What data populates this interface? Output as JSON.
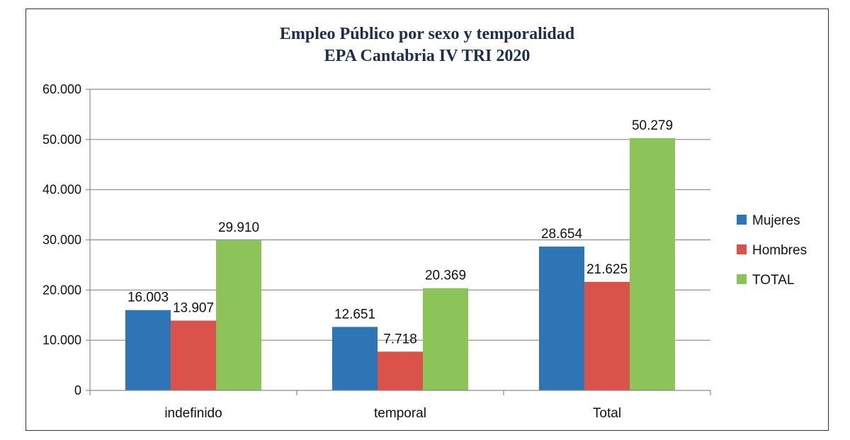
{
  "chart_data": {
    "type": "bar",
    "title": "Empleo Público por sexo y temporalidad",
    "subtitle": "EPA Cantabria IV TRI 2020",
    "xlabel": "",
    "ylabel": "",
    "categories": [
      "indefinido",
      "temporal",
      "Total"
    ],
    "series": [
      {
        "name": "Mujeres",
        "color": "#2e75b6",
        "values": [
          16003,
          12651,
          28654
        ],
        "labels": [
          "16.003",
          "12.651",
          "28.654"
        ]
      },
      {
        "name": "Hombres",
        "color": "#d9534a",
        "values": [
          13907,
          7718,
          21625
        ],
        "labels": [
          "13.907",
          "7.718",
          "21.625"
        ]
      },
      {
        "name": "TOTAL",
        "color": "#8dc45a",
        "values": [
          29910,
          20369,
          50279
        ],
        "labels": [
          "29.910",
          "20.369",
          "50.279"
        ]
      }
    ],
    "ylim": [
      0,
      60000
    ],
    "yticks": [
      0,
      10000,
      20000,
      30000,
      40000,
      50000,
      60000
    ],
    "ytick_labels": [
      "0",
      "10.000",
      "20.000",
      "30.000",
      "40.000",
      "50.000",
      "60.000"
    ],
    "grid": true,
    "legend_position": "right"
  }
}
